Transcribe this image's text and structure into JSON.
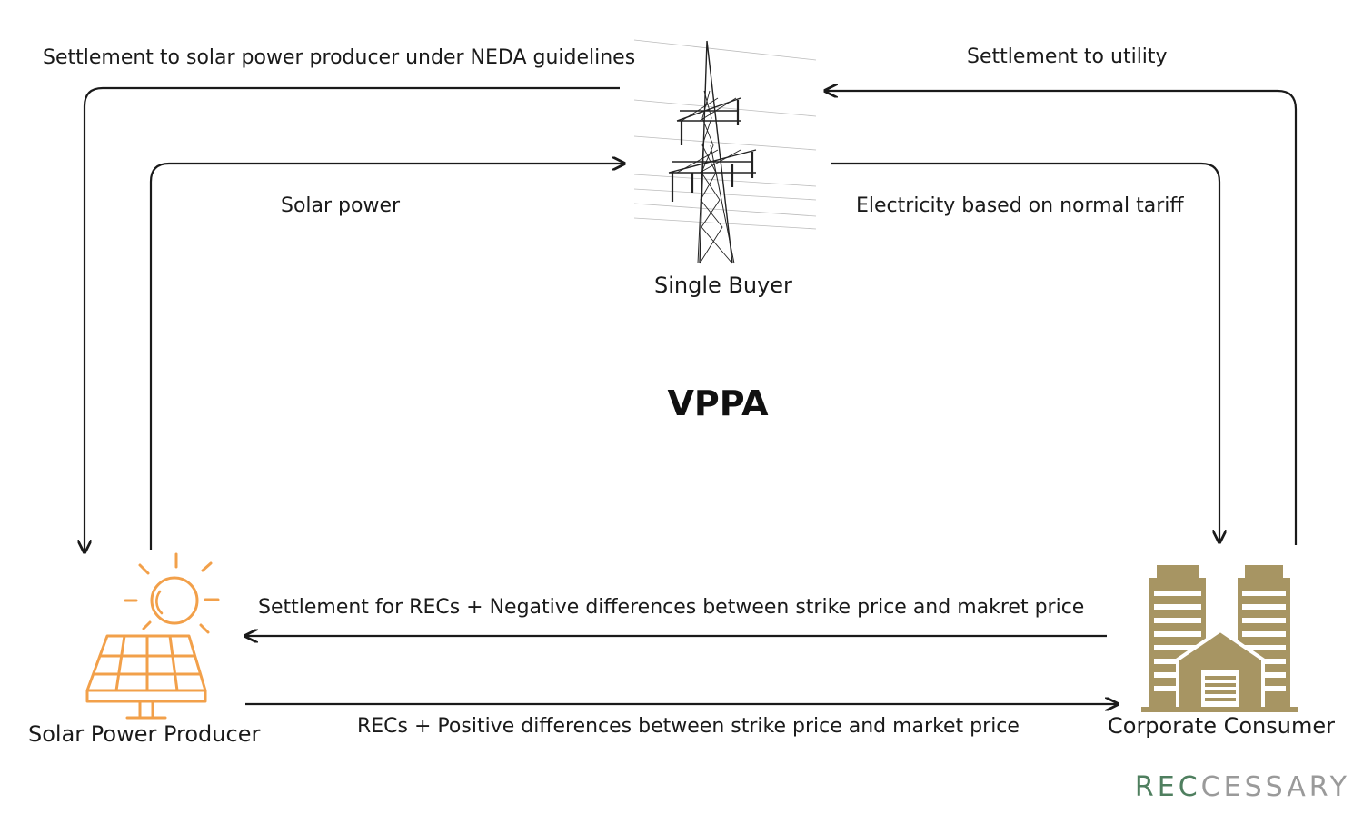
{
  "diagram": {
    "title": "VPPA",
    "nodes": {
      "single_buyer": "Single Buyer",
      "solar_producer": "Solar Power Producer",
      "corporate_consumer": "Corporate Consumer"
    },
    "flows": {
      "settlement_to_producer": "Settlement to solar power producer under NEDA guidelines",
      "settlement_to_utility": "Settlement to utility",
      "solar_power": "Solar power",
      "electricity_tariff": "Electricity based on normal tariff",
      "settlement_recs_negative": "Settlement for RECs + Negative differences between strike price and makret price",
      "recs_positive": "RECs + Positive differences between strike price and market price"
    }
  },
  "brand": {
    "prefix": "REC",
    "suffix": "CESSARY",
    "prefix_color": "#4f7f5f",
    "suffix_color": "#9a9a9a"
  },
  "colors": {
    "solar_icon": "#f2a04a",
    "building_icon": "#a79563",
    "arrow": "#1a1a1a"
  }
}
